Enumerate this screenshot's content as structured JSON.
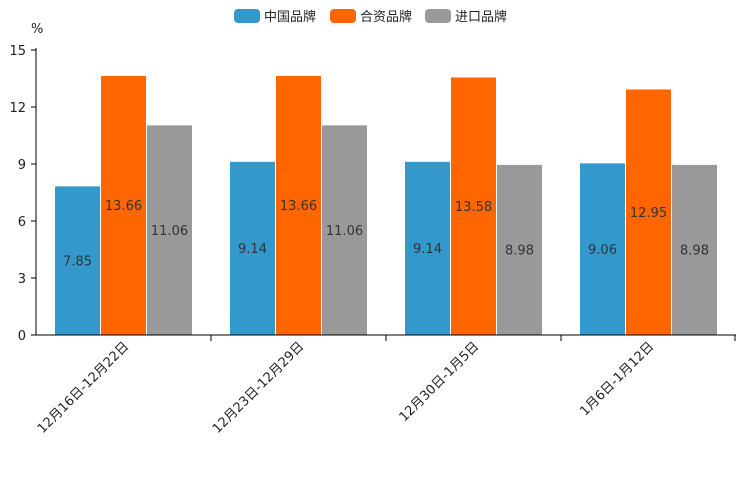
{
  "chart_data": {
    "type": "bar",
    "unit_label": "%",
    "categories": [
      "12月16日-12月22日",
      "12月23日-12月29日",
      "12月30日-1月5日",
      "1月6日-1月12日"
    ],
    "series": [
      {
        "name": "中国品牌",
        "color": "#3399cc",
        "values": [
          7.85,
          9.14,
          9.14,
          9.06
        ]
      },
      {
        "name": "合资品牌",
        "color": "#ff6600",
        "values": [
          13.66,
          13.66,
          13.58,
          12.95
        ]
      },
      {
        "name": "进口品牌",
        "color": "#999999",
        "values": [
          11.06,
          11.06,
          8.98,
          8.98
        ]
      }
    ],
    "ylim": [
      0,
      15
    ],
    "yticks": [
      0,
      3,
      6,
      9,
      12,
      15
    ],
    "value_labels": [
      [
        "7.85",
        "9.14",
        "9.14",
        "9.06"
      ],
      [
        "13.66",
        "13.66",
        "13.58",
        "12.95"
      ],
      [
        "11.06",
        "11.06",
        "8.98",
        "8.98"
      ]
    ],
    "legend_position": "top-center",
    "grid": false
  }
}
